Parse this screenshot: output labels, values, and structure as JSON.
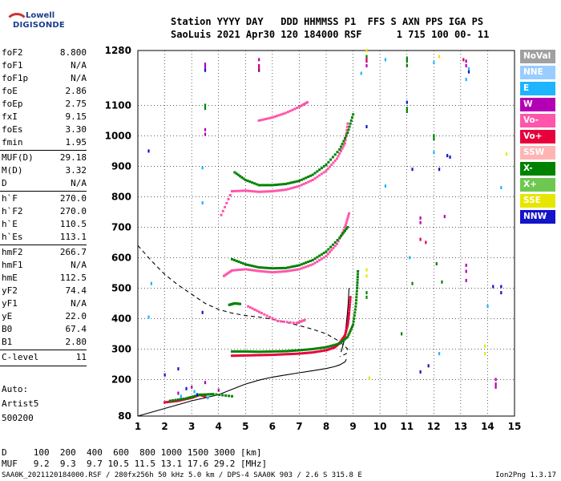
{
  "logo": {
    "line1": "Lowell",
    "line2": "DIGISONDE"
  },
  "header": {
    "line1": "Station YYYY DAY   DDD HHMMSS P1  FFS S AXN PPS IGA PS",
    "line2": "SaoLuis 2021 Apr30 120 184000 RSF      1 715 100 00- 11"
  },
  "params_group1": [
    {
      "k": "foF2",
      "v": "8.800"
    },
    {
      "k": "foF1",
      "v": "N/A"
    },
    {
      "k": "foF1p",
      "v": "N/A"
    },
    {
      "k": "foE",
      "v": "2.86"
    },
    {
      "k": "foEp",
      "v": "2.75"
    },
    {
      "k": "fxI",
      "v": "9.15"
    },
    {
      "k": "foEs",
      "v": "3.30"
    },
    {
      "k": "fmin",
      "v": "1.95"
    }
  ],
  "params_group2": [
    {
      "k": "MUF(D)",
      "v": "29.18"
    },
    {
      "k": "M(D)",
      "v": "3.32"
    },
    {
      "k": "D",
      "v": "N/A"
    }
  ],
  "params_group3": [
    {
      "k": "h`F",
      "v": "270.0"
    },
    {
      "k": "h`F2",
      "v": "270.0"
    },
    {
      "k": "h`E",
      "v": "110.5"
    },
    {
      "k": "h`Es",
      "v": "113.1"
    }
  ],
  "params_group4": [
    {
      "k": "hmF2",
      "v": "266.7"
    },
    {
      "k": "hmF1",
      "v": "N/A"
    },
    {
      "k": "hmE",
      "v": "112.5"
    },
    {
      "k": "yF2",
      "v": "74.4"
    },
    {
      "k": "yF1",
      "v": "N/A"
    },
    {
      "k": "yE",
      "v": "22.0"
    },
    {
      "k": "B0",
      "v": "67.4"
    },
    {
      "k": "B1",
      "v": "2.80"
    }
  ],
  "params_group5": [
    {
      "k": "C-level",
      "v": "11"
    }
  ],
  "auto": {
    "l1": "Auto:",
    "l2": "Artist5",
    "l3": "500200"
  },
  "footer": {
    "d_row": "D     100  200  400  600  800 1000 1500 3000 [km]",
    "muf_row": "MUF   9.2  9.3  9.7 10.5 11.5 13.1 17.6 29.2 [MHz]",
    "bottom": "SAA0K_2021120184000.RSF / 280fx256h 50 kHz 5.0 km / DPS-4 SAA0K 903 / 2.6 S 315.8 E",
    "version": "Ion2Png 1.3.17"
  },
  "legend": [
    {
      "label": "NoVal",
      "color": "#a0a0a0"
    },
    {
      "label": "NNE",
      "color": "#99ccff"
    },
    {
      "label": "E",
      "color": "#1eb4ff"
    },
    {
      "label": "W",
      "color": "#b400b4"
    },
    {
      "label": "Vo-",
      "color": "#ff55aa"
    },
    {
      "label": "Vo+",
      "color": "#e8003c"
    },
    {
      "label": "SSW",
      "color": "#ffb4b4"
    },
    {
      "label": "X-",
      "color": "#008200"
    },
    {
      "label": "X+",
      "color": "#6ec850"
    },
    {
      "label": "SSE",
      "color": "#e6e600"
    },
    {
      "label": "NNW",
      "color": "#1414c8"
    }
  ],
  "chart_data": {
    "type": "scatter",
    "xlim": [
      1,
      15
    ],
    "ylim": [
      80,
      1280
    ],
    "x_ticks": [
      1,
      2,
      3,
      4,
      5,
      6,
      7,
      8,
      9,
      10,
      11,
      12,
      13,
      14,
      15
    ],
    "y_ticks": [
      80,
      200,
      300,
      400,
      500,
      600,
      700,
      800,
      900,
      1000,
      1100,
      1280
    ],
    "grid": true,
    "series": [
      {
        "name": "Vo+",
        "color": "#e8003c",
        "points": [
          [
            4.5,
            278
          ],
          [
            5,
            279
          ],
          [
            5.5,
            280
          ],
          [
            6,
            281
          ],
          [
            6.5,
            283
          ],
          [
            7,
            285
          ],
          [
            7.5,
            289
          ],
          [
            8,
            296
          ],
          [
            8.3,
            305
          ],
          [
            8.5,
            320
          ],
          [
            8.7,
            345
          ],
          [
            8.8,
            380
          ],
          [
            8.85,
            420
          ],
          [
            8.9,
            470
          ]
        ]
      },
      {
        "name": "X-",
        "color": "#008200",
        "points": [
          [
            4.5,
            292
          ],
          [
            5,
            292
          ],
          [
            5.5,
            291
          ],
          [
            6,
            292
          ],
          [
            6.5,
            293
          ],
          [
            7,
            296
          ],
          [
            7.5,
            300
          ],
          [
            8,
            306
          ],
          [
            8.5,
            318
          ],
          [
            8.8,
            340
          ],
          [
            9,
            380
          ],
          [
            9.1,
            440
          ],
          [
            9.15,
            500
          ],
          [
            9.18,
            555
          ]
        ]
      },
      {
        "name": "Vo-",
        "color": "#ff55aa",
        "points": [
          [
            4.2,
            540
          ],
          [
            4.5,
            558
          ],
          [
            5,
            562
          ],
          [
            5.5,
            556
          ],
          [
            6,
            552
          ],
          [
            6.5,
            555
          ],
          [
            7,
            562
          ],
          [
            7.5,
            578
          ],
          [
            8,
            605
          ],
          [
            8.4,
            645
          ],
          [
            8.7,
            700
          ],
          [
            8.85,
            745
          ]
        ]
      },
      {
        "name": "X-",
        "color": "#008200",
        "points": [
          [
            4.5,
            595
          ],
          [
            5,
            578
          ],
          [
            5.5,
            568
          ],
          [
            6,
            565
          ],
          [
            6.5,
            566
          ],
          [
            7,
            575
          ],
          [
            7.5,
            592
          ],
          [
            8,
            620
          ],
          [
            8.5,
            665
          ],
          [
            8.8,
            700
          ]
        ]
      },
      {
        "name": "Vo-",
        "color": "#ff55aa",
        "points": [
          [
            4.1,
            740
          ],
          [
            4.5,
            818
          ],
          [
            5,
            820
          ],
          [
            5.5,
            816
          ],
          [
            6,
            818
          ],
          [
            6.5,
            823
          ],
          [
            7,
            835
          ],
          [
            7.5,
            855
          ],
          [
            8,
            885
          ],
          [
            8.4,
            925
          ],
          [
            8.7,
            975
          ],
          [
            8.8,
            1040
          ]
        ]
      },
      {
        "name": "X-",
        "color": "#008200",
        "points": [
          [
            4.6,
            880
          ],
          [
            5,
            855
          ],
          [
            5.5,
            838
          ],
          [
            6,
            838
          ],
          [
            6.5,
            842
          ],
          [
            7,
            852
          ],
          [
            7.5,
            872
          ],
          [
            8,
            905
          ],
          [
            8.5,
            955
          ],
          [
            8.8,
            1010
          ],
          [
            9,
            1070
          ]
        ]
      },
      {
        "name": "Vo-",
        "color": "#ff55aa",
        "points": [
          [
            5.5,
            1050
          ],
          [
            6,
            1060
          ],
          [
            6.5,
            1075
          ],
          [
            7,
            1095
          ],
          [
            7.3,
            1110
          ]
        ]
      },
      {
        "name": "Vo+",
        "color": "#e8003c",
        "points": [
          [
            2,
            125
          ],
          [
            2.5,
            130
          ],
          [
            3,
            140
          ],
          [
            3.3,
            150
          ],
          [
            3.5,
            145
          ]
        ]
      },
      {
        "name": "X-",
        "color": "#008200",
        "points": [
          [
            2.2,
            130
          ],
          [
            2.8,
            138
          ],
          [
            3.3,
            150
          ],
          [
            3.8,
            152
          ],
          [
            4.5,
            145
          ]
        ]
      },
      {
        "name": "W",
        "color": "#b400b4",
        "points": [
          [
            2.5,
            155
          ],
          [
            3,
            175
          ],
          [
            3.5,
            190
          ],
          [
            4,
            165
          ]
        ]
      },
      {
        "name": "E",
        "color": "#1eb4ff",
        "points": [
          [
            2.6,
            145
          ],
          [
            3.1,
            160
          ],
          [
            3.6,
            140
          ]
        ]
      },
      {
        "name": "NNW",
        "color": "#1414c8",
        "points": [
          [
            2.8,
            170
          ],
          [
            3.2,
            150
          ]
        ]
      },
      {
        "name": "X-",
        "color": "#008200",
        "points": [
          [
            4.4,
            445
          ],
          [
            4.6,
            450
          ],
          [
            4.8,
            448
          ]
        ]
      },
      {
        "name": "Vo-",
        "color": "#ff55aa",
        "points": [
          [
            5.1,
            440
          ],
          [
            5.6,
            418
          ],
          [
            6.2,
            392
          ],
          [
            6.9,
            385
          ],
          [
            7.2,
            395
          ]
        ]
      },
      {
        "name": "W",
        "color": "#b400b4",
        "points": [
          [
            3.5,
            1235
          ],
          [
            3.5,
            1225
          ],
          [
            5.5,
            1250
          ],
          [
            5.5,
            1230
          ],
          [
            9.5,
            1245
          ],
          [
            9.5,
            1230
          ],
          [
            13.2,
            1245
          ],
          [
            13.2,
            1230
          ],
          [
            13.2,
            575
          ],
          [
            13.2,
            555
          ],
          [
            13.2,
            525
          ],
          [
            14.3,
            200
          ],
          [
            14.3,
            185
          ],
          [
            14.3,
            175
          ],
          [
            11.5,
            730
          ],
          [
            11.5,
            715
          ],
          [
            12.4,
            735
          ],
          [
            3.5,
            1020
          ],
          [
            3.5,
            1005
          ]
        ]
      },
      {
        "name": "NNW",
        "color": "#1414c8",
        "points": [
          [
            1.4,
            950
          ],
          [
            2,
            215
          ],
          [
            2.5,
            235
          ],
          [
            3.5,
            1215
          ],
          [
            3.4,
            420
          ],
          [
            5.5,
            1215
          ],
          [
            9.5,
            1030
          ],
          [
            11,
            1110
          ],
          [
            11.2,
            890
          ],
          [
            11.5,
            225
          ],
          [
            12.2,
            890
          ],
          [
            12.6,
            930
          ],
          [
            13.3,
            1210
          ],
          [
            14.2,
            505
          ],
          [
            14.5,
            505
          ],
          [
            14.5,
            485
          ],
          [
            11.8,
            245
          ],
          [
            12.5,
            935
          ]
        ]
      },
      {
        "name": "E",
        "color": "#1eb4ff",
        "points": [
          [
            1.5,
            515
          ],
          [
            1.4,
            405
          ],
          [
            3.4,
            895
          ],
          [
            3.4,
            780
          ],
          [
            9.3,
            1205
          ],
          [
            10.2,
            835
          ],
          [
            12,
            945
          ],
          [
            12.2,
            285
          ],
          [
            13.2,
            1185
          ],
          [
            14,
            440
          ],
          [
            14.5,
            830
          ],
          [
            10.2,
            1250
          ],
          [
            12,
            1240
          ],
          [
            11.1,
            600
          ],
          [
            13.3,
            1220
          ]
        ]
      },
      {
        "name": "X-",
        "color": "#008200",
        "points": [
          [
            3.5,
            1100
          ],
          [
            3.5,
            1090
          ],
          [
            9.5,
            1260
          ],
          [
            11,
            1255
          ],
          [
            11,
            1245
          ],
          [
            11,
            1230
          ],
          [
            11,
            1090
          ],
          [
            11,
            1080
          ],
          [
            12,
            1000
          ],
          [
            12,
            990
          ],
          [
            12.1,
            580
          ],
          [
            12.3,
            520
          ],
          [
            11.2,
            515
          ],
          [
            10.8,
            350
          ],
          [
            9.5,
            485
          ],
          [
            9.5,
            470
          ]
        ]
      },
      {
        "name": "SSE",
        "color": "#e6e600",
        "points": [
          [
            9.5,
            560
          ],
          [
            9.5,
            540
          ],
          [
            13.9,
            310
          ],
          [
            13.9,
            285
          ],
          [
            9.5,
            1280
          ],
          [
            9.6,
            205
          ],
          [
            14.7,
            940
          ],
          [
            12.2,
            1260
          ]
        ]
      },
      {
        "name": "Vo+",
        "color": "#e8003c",
        "points": [
          [
            5.5,
            1220
          ],
          [
            9.5,
            1250
          ],
          [
            13.1,
            1250
          ],
          [
            11.7,
            650
          ],
          [
            11.5,
            660
          ]
        ]
      }
    ],
    "curves": [
      {
        "name": "profile",
        "style": "solid",
        "color": "#000",
        "points": [
          [
            1,
            80
          ],
          [
            2,
            105
          ],
          [
            3,
            130
          ],
          [
            4,
            150
          ],
          [
            4.5,
            168
          ],
          [
            5,
            185
          ],
          [
            5.5,
            198
          ],
          [
            6,
            208
          ],
          [
            6.5,
            215
          ],
          [
            7,
            222
          ],
          [
            7.5,
            229
          ],
          [
            8,
            236
          ],
          [
            8.3,
            242
          ],
          [
            8.5,
            248
          ],
          [
            8.7,
            258
          ],
          [
            8.75,
            266.7
          ]
        ]
      },
      {
        "name": "profile-upper",
        "style": "solid",
        "color": "#000",
        "points": [
          [
            8.55,
            290
          ],
          [
            8.65,
            320
          ],
          [
            8.72,
            360
          ],
          [
            8.78,
            410
          ],
          [
            8.82,
            450
          ],
          [
            8.85,
            500
          ]
        ]
      },
      {
        "name": "model",
        "style": "dashed",
        "color": "#000",
        "points": [
          [
            1,
            640
          ],
          [
            1.5,
            590
          ],
          [
            2,
            545
          ],
          [
            2.5,
            510
          ],
          [
            3,
            480
          ],
          [
            3.5,
            450
          ],
          [
            4,
            430
          ],
          [
            4.5,
            418
          ],
          [
            5,
            410
          ],
          [
            5.5,
            405
          ],
          [
            6,
            398
          ],
          [
            6.5,
            388
          ],
          [
            7,
            377
          ],
          [
            7.5,
            365
          ],
          [
            8,
            350
          ],
          [
            8.5,
            325
          ],
          [
            8.8,
            300
          ],
          [
            8.75,
            285
          ],
          [
            8.5,
            275
          ]
        ]
      }
    ]
  }
}
